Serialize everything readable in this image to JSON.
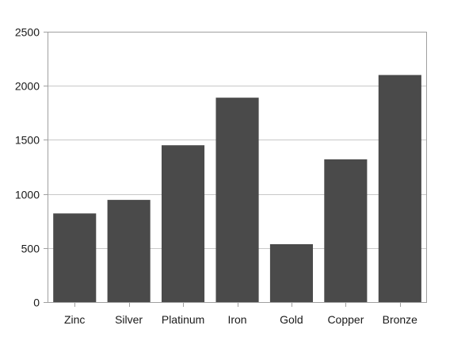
{
  "chart_data": {
    "type": "bar",
    "title": "",
    "xlabel": "",
    "ylabel": "",
    "categories": [
      "Zinc",
      "Silver",
      "Platinum",
      "Iron",
      "Gold",
      "Copper",
      "Bronze"
    ],
    "values": [
      820,
      945,
      1450,
      1890,
      535,
      1320,
      2100
    ],
    "ylim": [
      0,
      2500
    ],
    "yticks": [
      "0",
      "500",
      "1000",
      "1500",
      "2000",
      "2500"
    ],
    "grid": true,
    "legend": "none",
    "colors": {
      "bar": "#4a4a4a",
      "grid": "#c8c8c8",
      "axis": "#a0a0a0"
    }
  }
}
